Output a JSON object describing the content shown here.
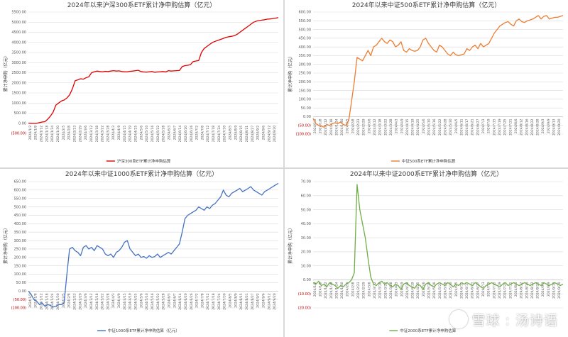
{
  "watermark": {
    "text": "雪球 : 汤诗语",
    "icon": "snowball-logo"
  },
  "chart_data": [
    {
      "type": "line",
      "title": "2024年以来沪深300系ETF累计净申购估算（亿元）",
      "ylabel": "累计净申购（亿元）",
      "xlabel": "",
      "ylim": [
        -500,
        5500
      ],
      "yticks": [
        -500,
        0,
        500,
        1000,
        1500,
        2000,
        2500,
        3000,
        3500,
        4000,
        4500,
        5000,
        5500
      ],
      "ytick_labels": [
        "(500.00)",
        "0.00",
        "500.00",
        "1000.00",
        "1500.00",
        "2000.00",
        "2500.00",
        "3000.00",
        "3500.00",
        "4000.00",
        "4500.00",
        "5000.00",
        "5500.00"
      ],
      "grid": true,
      "legend_position": "bottom",
      "color": "#e00000",
      "x_tick_labels": [
        "2024/1/2",
        "2024/1/8",
        "2024/1/12",
        "2024/1/18",
        "2024/1/24",
        "2024/1/30",
        "2024/2/5",
        "2024/2/8",
        "2024/2/23",
        "2024/2/29",
        "2024/3/6",
        "2024/3/12",
        "2024/3/18",
        "2024/3/22",
        "2024/3/28",
        "2024/4/3",
        "2024/4/9",
        "2024/4/15",
        "2024/4/19",
        "2024/4/25",
        "2024/5/6",
        "2024/5/10",
        "2024/5/16",
        "2024/5/22",
        "2024/5/28",
        "2024/6/3",
        "2024/6/7",
        "2024/6/14",
        "2024/6/20",
        "2024/6/26",
        "2024/7/2",
        "2024/7/8",
        "2024/7/12",
        "2024/7/18",
        "2024/7/24",
        "2024/7/30",
        "2024/8/5",
        "2024/8/9",
        "2024/8/15",
        "2024/8/21",
        "2024/8/27",
        "2024/9/2",
        "2024/9/6",
        "2024/9/12",
        "2024/9/20"
      ],
      "series": [
        {
          "name": "沪深300系ETF累计净申购估算",
          "x": [
            0,
            2,
            4,
            6,
            8,
            10,
            12,
            14,
            16,
            18,
            20,
            22,
            24,
            26,
            28,
            30,
            32,
            34,
            36,
            38,
            40,
            42,
            44,
            46,
            48,
            50,
            52,
            54,
            56,
            58,
            60,
            62,
            64,
            66,
            68,
            70,
            72,
            74,
            76,
            78,
            80,
            82,
            84,
            86,
            88,
            90,
            92,
            94,
            96,
            98,
            100,
            102,
            104,
            106,
            108,
            110,
            112,
            114,
            116,
            118,
            120,
            122,
            124,
            126,
            128,
            130,
            132,
            134,
            136,
            138,
            140,
            142,
            144,
            146,
            148,
            150,
            152,
            154,
            156,
            158,
            160,
            162,
            164,
            166,
            168,
            170,
            172,
            174,
            176,
            178,
            180,
            182
          ],
          "values": [
            10,
            0,
            -10,
            0,
            30,
            60,
            80,
            200,
            350,
            550,
            900,
            1000,
            1100,
            1150,
            1250,
            1400,
            1700,
            2100,
            2150,
            2200,
            2180,
            2250,
            2300,
            2500,
            2550,
            2580,
            2560,
            2550,
            2570,
            2560,
            2580,
            2600,
            2580,
            2590,
            2560,
            2550,
            2550,
            2570,
            2580,
            2600,
            2620,
            2560,
            2540,
            2530,
            2550,
            2560,
            2520,
            2540,
            2550,
            2560,
            2540,
            2600,
            2580,
            2590,
            2600,
            2610,
            2800,
            2850,
            2870,
            2900,
            3050,
            3080,
            3100,
            3500,
            3700,
            3800,
            3900,
            4000,
            4050,
            4100,
            4150,
            4200,
            4250,
            4280,
            4300,
            4330,
            4400,
            4500,
            4600,
            4700,
            4800,
            4900,
            5000,
            5050,
            5080,
            5100,
            5120,
            5150,
            5160,
            5180,
            5200,
            5230
          ]
        }
      ]
    },
    {
      "type": "line",
      "title": "2024年以来中证500系ETF累计净申购估算（亿元）",
      "ylabel": "累计净申购（亿元）",
      "xlabel": "",
      "ylim": [
        -100,
        600
      ],
      "yticks": [
        -100,
        -50,
        0,
        50,
        100,
        150,
        200,
        250,
        300,
        350,
        400,
        450,
        500,
        550,
        600
      ],
      "ytick_labels": [
        "(100.00)",
        "(50.00)",
        "0.00",
        "50.00",
        "100.00",
        "150.00",
        "200.00",
        "250.00",
        "300.00",
        "350.00",
        "400.00",
        "450.00",
        "500.00",
        "550.00",
        "600.00"
      ],
      "grid": true,
      "legend_position": "bottom",
      "color": "#ed7d31",
      "x_tick_labels": [
        "2024/1/2",
        "2024/1/8",
        "2024/1/12",
        "2024/1/18",
        "2024/1/24",
        "2024/1/30",
        "2024/2/5",
        "2024/2/8",
        "2024/2/23",
        "2024/2/29",
        "2024/3/6",
        "2024/3/12",
        "2024/3/18",
        "2024/3/22",
        "2024/3/28",
        "2024/4/3",
        "2024/4/9",
        "2024/4/15",
        "2024/4/19",
        "2024/4/25",
        "2024/5/6",
        "2024/5/10",
        "2024/5/16",
        "2024/5/22",
        "2024/5/28",
        "2024/5/30",
        "2024/6/5",
        "2024/6/11",
        "2024/6/17",
        "2024/6/21",
        "2024/6/27",
        "2024/7/3",
        "2024/7/9",
        "2024/7/15",
        "2024/7/19",
        "2024/7/25",
        "2024/7/31",
        "2024/8/6",
        "2024/8/12",
        "2024/8/16",
        "2024/8/22",
        "2024/8/28",
        "2024/9/3",
        "2024/9/9",
        "2024/9/13",
        "2024/9/20"
      ],
      "series": [
        {
          "name": "中证500系ETF累计净申购估算",
          "x": [
            0,
            2,
            4,
            6,
            8,
            10,
            12,
            14,
            16,
            18,
            20,
            22,
            24,
            26,
            28,
            30,
            32,
            34,
            36,
            38,
            40,
            42,
            44,
            46,
            48,
            50,
            52,
            54,
            56,
            58,
            60,
            62,
            64,
            66,
            68,
            70,
            72,
            74,
            76,
            78,
            80,
            82,
            84,
            86,
            88,
            90,
            92,
            94,
            96,
            98,
            100,
            102,
            104,
            106,
            108,
            110,
            112,
            114,
            116,
            118,
            120,
            122,
            124,
            126,
            128,
            130,
            132,
            134,
            136,
            138,
            140,
            142,
            144,
            146,
            148,
            150,
            152,
            154,
            156,
            158,
            160,
            162,
            164,
            166,
            168,
            170,
            172,
            174,
            176,
            178,
            180,
            182
          ],
          "values": [
            -10,
            -40,
            -50,
            -55,
            -60,
            -45,
            -50,
            -40,
            -35,
            -40,
            -30,
            -45,
            -50,
            -20,
            90,
            200,
            340,
            330,
            320,
            350,
            380,
            350,
            400,
            410,
            430,
            450,
            430,
            420,
            440,
            430,
            400,
            410,
            430,
            380,
            370,
            390,
            380,
            375,
            380,
            400,
            440,
            450,
            420,
            400,
            380,
            370,
            410,
            400,
            380,
            360,
            350,
            370,
            355,
            350,
            355,
            360,
            390,
            380,
            400,
            410,
            390,
            420,
            400,
            410,
            420,
            450,
            480,
            500,
            520,
            530,
            540,
            545,
            530,
            520,
            550,
            560,
            545,
            540,
            550,
            555,
            560,
            570,
            580,
            560,
            575,
            580,
            560,
            565,
            570,
            570,
            575,
            580
          ]
        }
      ]
    },
    {
      "type": "line",
      "title": "2024年以来中证1000系ETF累计净申购估算（亿元）",
      "ylabel": "累计净申购（亿元）",
      "xlabel": "",
      "ylim": [
        -100,
        650
      ],
      "yticks": [
        -100,
        -50,
        0,
        50,
        100,
        150,
        200,
        250,
        300,
        350,
        400,
        450,
        500,
        550,
        600,
        650
      ],
      "ytick_labels": [
        "(100.00)",
        "(50.00)",
        "0.00",
        "50.00",
        "100.00",
        "150.00",
        "200.00",
        "250.00",
        "300.00",
        "350.00",
        "400.00",
        "450.00",
        "500.00",
        "550.00",
        "600.00",
        "650.00"
      ],
      "grid": true,
      "legend_position": "bottom",
      "color": "#4472c4",
      "x_tick_labels": [
        "2024/1/2",
        "2024/1/8",
        "2024/1/12",
        "2024/1/18",
        "2024/1/24",
        "2024/1/30",
        "2024/2/5",
        "2024/2/8",
        "2024/2/23",
        "2024/2/29",
        "2024/3/6",
        "2024/3/12",
        "2024/3/18",
        "2024/3/22",
        "2024/3/28",
        "2024/4/3",
        "2024/4/9",
        "2024/4/15",
        "2024/4/19",
        "2024/4/25",
        "2024/5/6",
        "2024/5/10",
        "2024/5/16",
        "2024/5/22",
        "2024/5/28",
        "2024/6/3",
        "2024/6/7",
        "2024/6/14",
        "2024/6/20",
        "2024/6/26",
        "2024/7/2",
        "2024/7/8",
        "2024/7/12",
        "2024/7/18",
        "2024/7/24",
        "2024/7/30",
        "2024/8/5",
        "2024/8/9",
        "2024/8/15",
        "2024/8/21",
        "2024/8/27",
        "2024/9/2",
        "2024/9/6",
        "2024/9/12",
        "2024/9/20"
      ],
      "series": [
        {
          "name": "中证1000系ETF累计净申购估算（亿元）",
          "x": [
            0,
            2,
            4,
            6,
            8,
            10,
            12,
            14,
            16,
            18,
            20,
            22,
            24,
            26,
            28,
            30,
            32,
            34,
            36,
            38,
            40,
            42,
            44,
            46,
            48,
            50,
            52,
            54,
            56,
            58,
            60,
            62,
            64,
            66,
            68,
            70,
            72,
            74,
            76,
            78,
            80,
            82,
            84,
            86,
            88,
            90,
            92,
            94,
            96,
            98,
            100,
            102,
            104,
            106,
            108,
            110,
            112,
            114,
            116,
            118,
            120,
            122,
            124,
            126,
            128,
            130,
            132,
            134,
            136,
            138,
            140,
            142,
            144,
            146,
            148,
            150,
            152,
            154,
            156,
            158,
            160,
            162,
            164,
            166,
            168,
            170,
            172,
            174,
            176,
            178,
            180,
            182
          ],
          "values": [
            0,
            -20,
            -50,
            -60,
            -80,
            -70,
            -90,
            -80,
            -85,
            -95,
            -90,
            -80,
            -80,
            -70,
            100,
            250,
            260,
            240,
            230,
            210,
            260,
            270,
            250,
            260,
            240,
            270,
            260,
            250,
            220,
            210,
            220,
            200,
            230,
            240,
            260,
            290,
            300,
            250,
            230,
            210,
            220,
            200,
            205,
            195,
            210,
            200,
            205,
            220,
            200,
            210,
            220,
            230,
            220,
            240,
            260,
            280,
            350,
            430,
            450,
            460,
            470,
            480,
            500,
            490,
            480,
            500,
            490,
            510,
            520,
            540,
            560,
            600,
            570,
            560,
            580,
            590,
            600,
            610,
            590,
            600,
            610,
            620,
            600,
            590,
            580,
            570,
            590,
            600,
            610,
            620,
            630,
            640
          ]
        }
      ]
    },
    {
      "type": "line",
      "title": "2024年以来中证2000系ETF累计净申购估算（亿元）",
      "ylabel": "累计净申购（亿元）",
      "xlabel": "",
      "ylim": [
        -20,
        70
      ],
      "yticks": [
        -20,
        -10,
        0,
        10,
        20,
        30,
        40,
        50,
        60,
        70
      ],
      "ytick_labels": [
        "(20.00)",
        "(10.00)",
        "0.00",
        "10.00",
        "20.00",
        "30.00",
        "40.00",
        "50.00",
        "60.00",
        "70.00"
      ],
      "grid": true,
      "legend_position": "bottom",
      "color": "#70ad47",
      "x_tick_labels": [
        "2024/1/2",
        "2024/1/8",
        "2024/1/12",
        "2024/1/18",
        "2024/1/24",
        "2024/1/30",
        "2024/2/5",
        "2024/2/8",
        "2024/2/23",
        "2024/2/29",
        "2024/3/6",
        "2024/3/12",
        "2024/3/18",
        "2024/3/22",
        "2024/3/28",
        "2024/4/3",
        "2024/4/9",
        "2024/4/15",
        "2024/4/19",
        "2024/4/25",
        "2024/5/6",
        "2024/5/10",
        "2024/5/16",
        "2024/5/22",
        "2024/5/28",
        "2024/5/30",
        "2024/6/5",
        "2024/6/11",
        "2024/6/17",
        "2024/6/21",
        "2024/6/27",
        "2024/7/3",
        "2024/7/9",
        "2024/7/15",
        "2024/7/19",
        "2024/7/25",
        "2024/7/31",
        "2024/8/6",
        "2024/8/12",
        "2024/8/16",
        "2024/8/22",
        "2024/8/28",
        "2024/9/3",
        "2024/9/9",
        "2024/9/13",
        "2024/9/20"
      ],
      "series": [
        {
          "name": "中证2000系ETF累计净申购估算",
          "x": [
            0,
            2,
            4,
            6,
            8,
            10,
            12,
            14,
            16,
            18,
            20,
            22,
            24,
            26,
            28,
            30,
            32,
            34,
            36,
            38,
            40,
            42,
            44,
            46,
            48,
            50,
            52,
            54,
            56,
            58,
            60,
            62,
            64,
            66,
            68,
            70,
            72,
            74,
            76,
            78,
            80,
            82,
            84,
            86,
            88,
            90,
            92,
            94,
            96,
            98,
            100,
            102,
            104,
            106,
            108,
            110,
            112,
            114,
            116,
            118,
            120,
            122,
            124,
            126,
            128,
            130,
            132,
            134,
            136,
            138,
            140,
            142,
            144,
            146,
            148,
            150,
            152,
            154,
            156,
            158,
            160,
            162,
            164,
            166,
            168,
            170,
            172,
            174,
            176,
            178,
            180,
            182
          ],
          "values": [
            -2,
            -3,
            -1,
            -4,
            -3,
            -5,
            -2,
            -3,
            -4,
            -6,
            -4,
            -5,
            -3,
            -2,
            0,
            5,
            68,
            50,
            40,
            30,
            15,
            2,
            -3,
            -4,
            -2,
            -1,
            -3,
            -2,
            -4,
            -5,
            -3,
            -4,
            -7,
            -3,
            -2,
            -4,
            -5,
            -6,
            -3,
            -4,
            -7,
            -3,
            -2,
            -4,
            -5,
            -3,
            -2,
            -3,
            -4,
            -2,
            -3,
            -5,
            -3,
            -4,
            -2,
            -3,
            -2,
            -3,
            -4,
            -2,
            -3,
            -5,
            -6,
            -4,
            -3,
            -2,
            -3,
            -4,
            -5,
            -3,
            -2,
            -4,
            -3,
            -2,
            -3,
            -4,
            -3,
            -2,
            -3,
            -4,
            -3,
            -2,
            -3,
            -4,
            -2,
            -3,
            -4,
            -3,
            -2,
            -3,
            -4,
            -3
          ]
        }
      ]
    }
  ]
}
